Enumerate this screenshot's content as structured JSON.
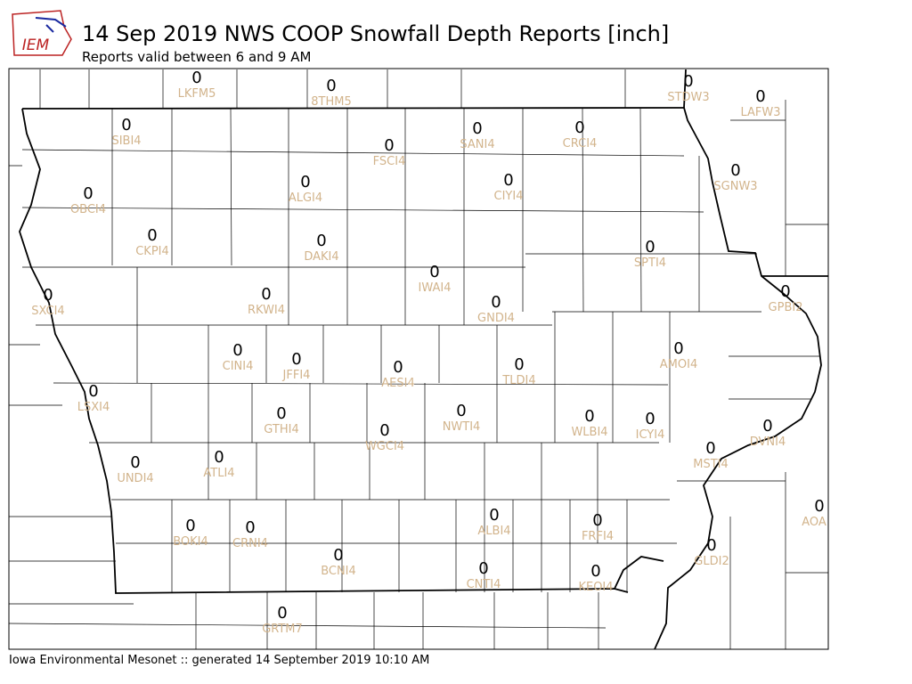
{
  "title": "14 Sep 2019 NWS COOP Snowfall Depth Reports [inch]",
  "subtitle": "Reports valid between 6 and 9 AM",
  "footer": "Iowa Environmental Mesonet :: generated 14 September 2019 10:10 AM",
  "logo": "IEM",
  "stations": [
    {
      "id": "LKFM5",
      "value": 0
    },
    {
      "id": "8THM5",
      "value": 0
    },
    {
      "id": "STDW3",
      "value": 0
    },
    {
      "id": "LAFW3",
      "value": 0
    },
    {
      "id": "SIBI4",
      "value": 0
    },
    {
      "id": "SANI4",
      "value": 0
    },
    {
      "id": "CRCI4",
      "value": 0
    },
    {
      "id": "FSCI4",
      "value": 0
    },
    {
      "id": "OBCI4",
      "value": 0
    },
    {
      "id": "ALGI4",
      "value": 0
    },
    {
      "id": "CIYI4",
      "value": 0
    },
    {
      "id": "SGNW3",
      "value": 0
    },
    {
      "id": "CKPI4",
      "value": 0
    },
    {
      "id": "DAKI4",
      "value": 0
    },
    {
      "id": "SPTI4",
      "value": 0
    },
    {
      "id": "IWAI4",
      "value": 0
    },
    {
      "id": "SXCI4",
      "value": 0
    },
    {
      "id": "RKWI4",
      "value": 0
    },
    {
      "id": "GNDI4",
      "value": 0
    },
    {
      "id": "GPBI2",
      "value": 0
    },
    {
      "id": "CINI4",
      "value": 0
    },
    {
      "id": "JFFI4",
      "value": 0
    },
    {
      "id": "AESI4",
      "value": 0
    },
    {
      "id": "TLDI4",
      "value": 0
    },
    {
      "id": "AMOI4",
      "value": 0
    },
    {
      "id": "LSXI4",
      "value": 0
    },
    {
      "id": "GTHI4",
      "value": 0
    },
    {
      "id": "NWTI4",
      "value": 0
    },
    {
      "id": "WLBI4",
      "value": 0
    },
    {
      "id": "ICYI4",
      "value": 0
    },
    {
      "id": "DVNI4",
      "value": 0
    },
    {
      "id": "WGCI4",
      "value": 0
    },
    {
      "id": "MSTI4",
      "value": 0
    },
    {
      "id": "UNDI4",
      "value": 0
    },
    {
      "id": "ATLI4",
      "value": 0
    },
    {
      "id": "AOA",
      "value": 0
    },
    {
      "id": "ALBI4",
      "value": 0
    },
    {
      "id": "FRFI4",
      "value": 0
    },
    {
      "id": "BOKI4",
      "value": 0
    },
    {
      "id": "CRNI4",
      "value": 0
    },
    {
      "id": "GLDI2",
      "value": 0
    },
    {
      "id": "BCNI4",
      "value": 0
    },
    {
      "id": "CNTI4",
      "value": 0
    },
    {
      "id": "KEOI4",
      "value": 0
    },
    {
      "id": "GRTM7",
      "value": 0
    }
  ]
}
